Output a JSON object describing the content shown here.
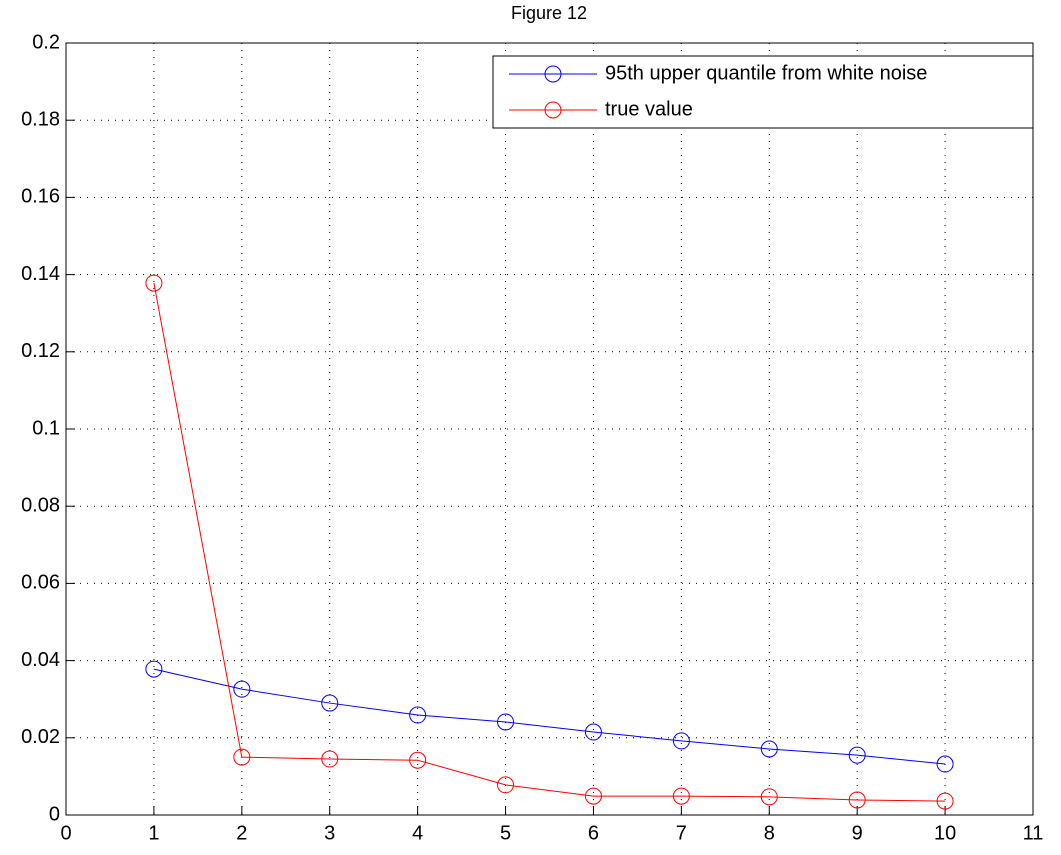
{
  "chart_data": {
    "type": "line",
    "title": "Figure 12",
    "x": [
      1,
      2,
      3,
      4,
      5,
      6,
      7,
      8,
      9,
      10
    ],
    "series": [
      {
        "name": "95th upper quantile from white noise",
        "color": "#0000ff",
        "values": [
          0.0378,
          0.0326,
          0.029,
          0.0259,
          0.0241,
          0.0215,
          0.0192,
          0.0171,
          0.0155,
          0.0132
        ]
      },
      {
        "name": "true value",
        "color": "#ff0000",
        "values": [
          0.1378,
          0.015,
          0.0145,
          0.0142,
          0.0078,
          0.0049,
          0.0049,
          0.0047,
          0.0039,
          0.0036
        ]
      }
    ],
    "xlim": [
      0,
      11
    ],
    "xticks": [
      0,
      1,
      2,
      3,
      4,
      5,
      6,
      7,
      8,
      9,
      10,
      11
    ],
    "ylim": [
      0,
      0.2
    ],
    "yticks": [
      0,
      0.02,
      0.04,
      0.06,
      0.08,
      0.1,
      0.12,
      0.14,
      0.16,
      0.18,
      0.2
    ],
    "grid": true,
    "legend": "top-right"
  }
}
